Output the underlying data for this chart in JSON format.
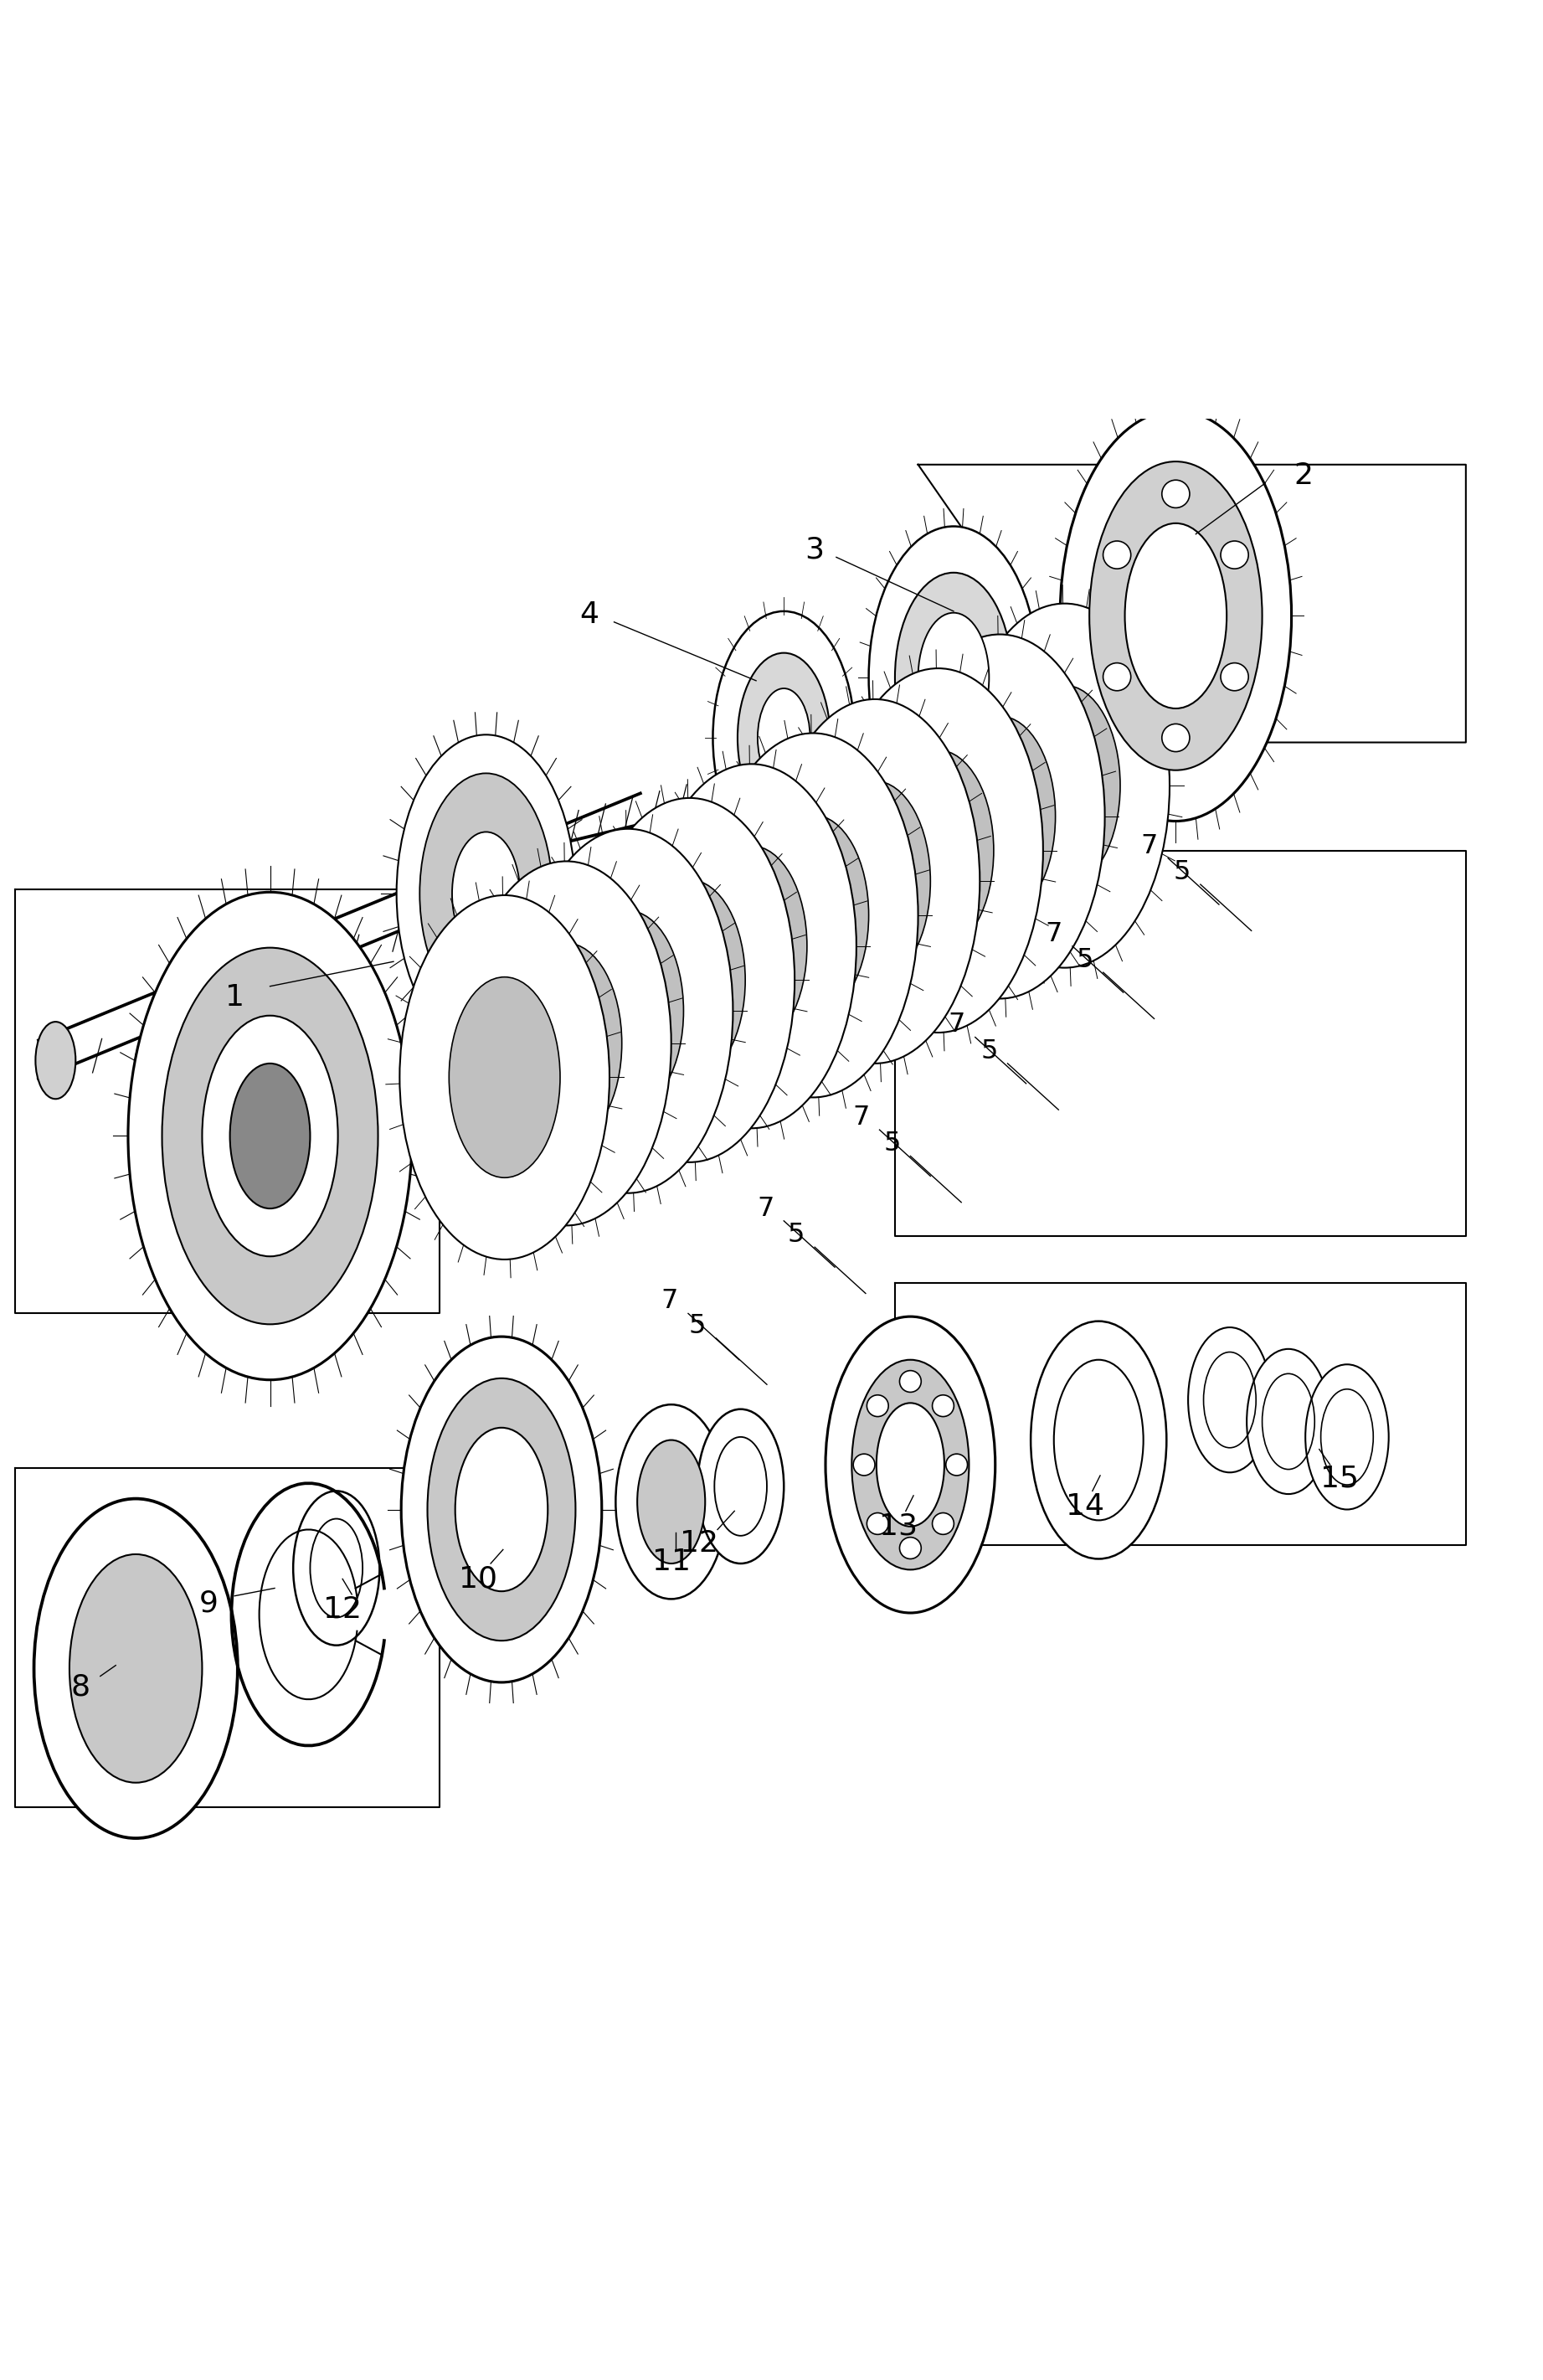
{
  "title": "",
  "background_color": "#ffffff",
  "line_color": "#000000",
  "line_width": 1.5,
  "figure_width": 18.43,
  "figure_height": 28.42
}
